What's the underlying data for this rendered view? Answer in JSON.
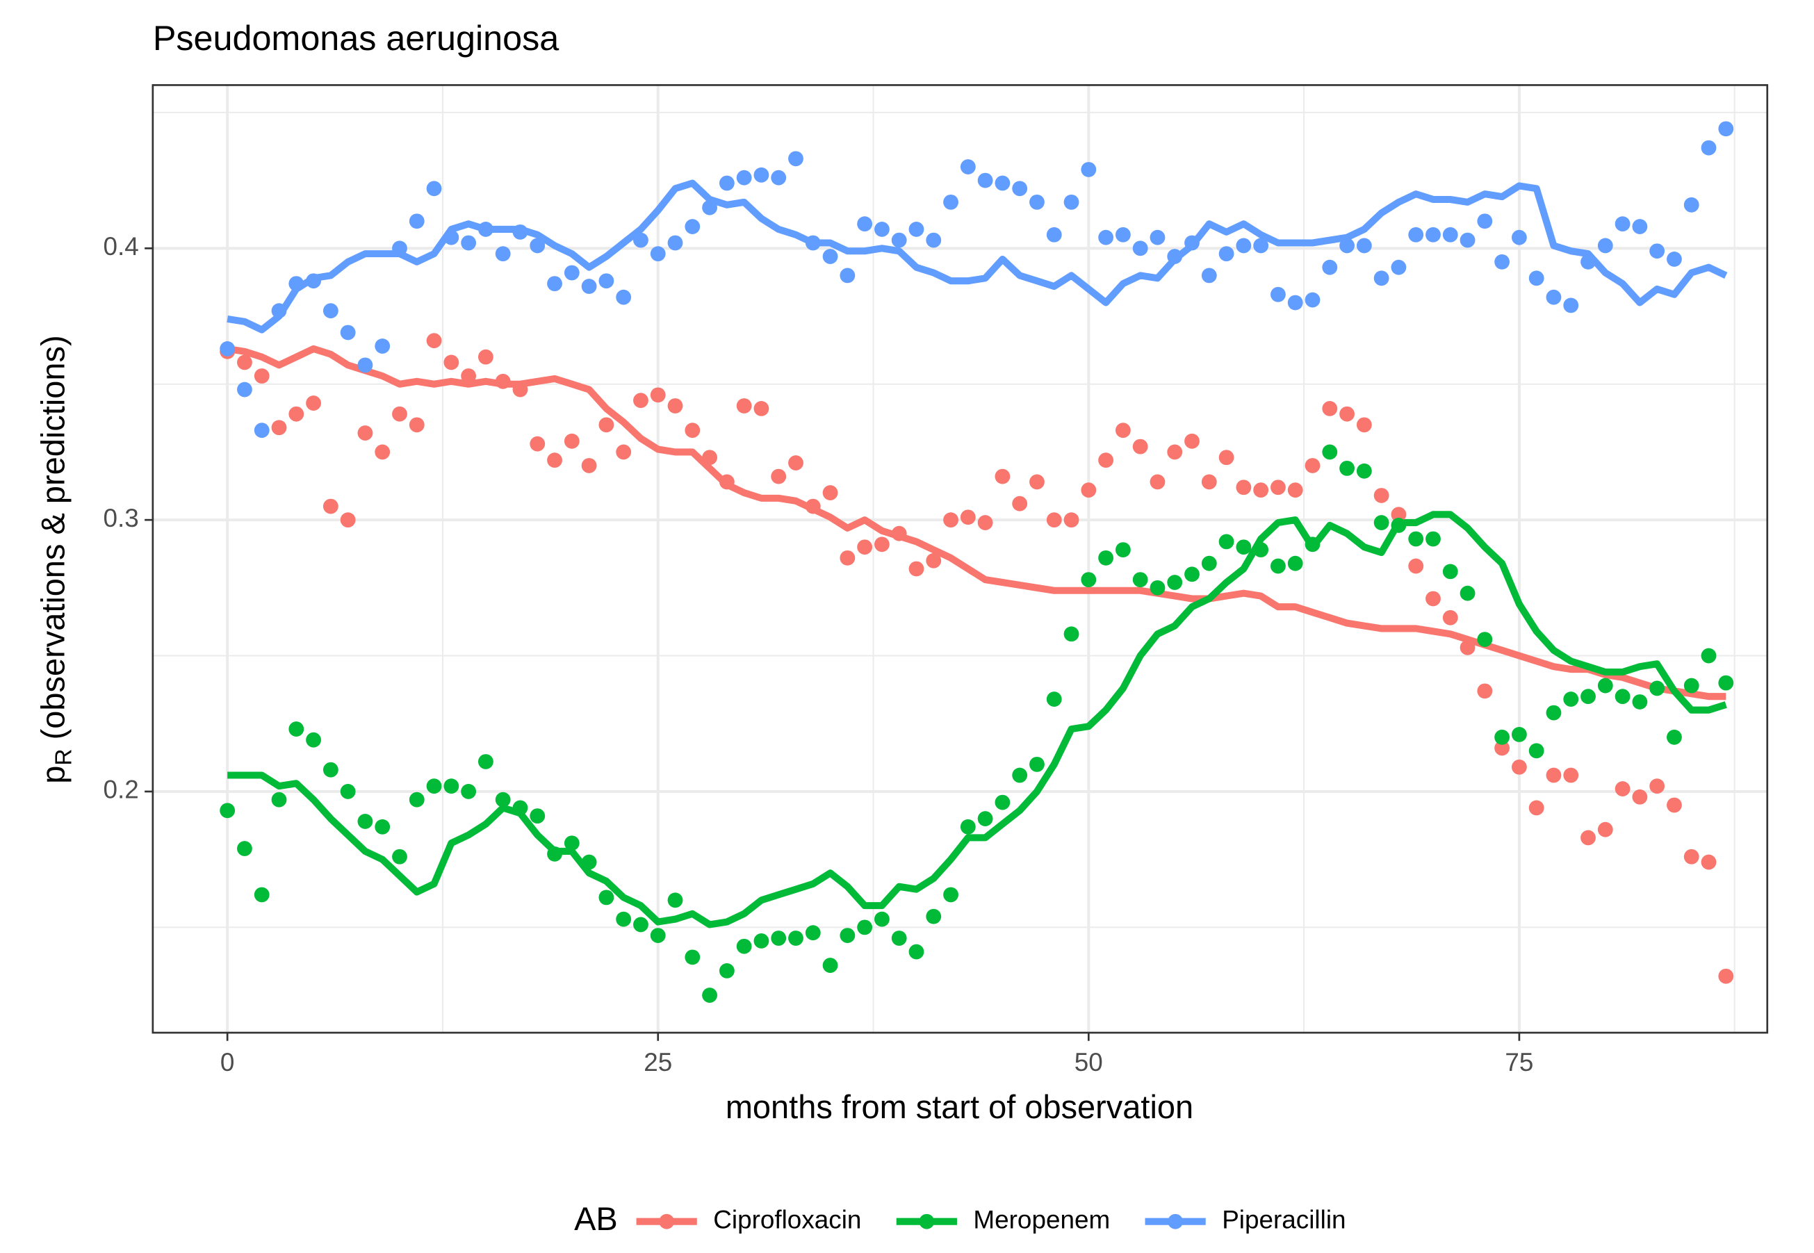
{
  "chart_data": {
    "type": "line",
    "title": "Pseudomonas aeruginosa",
    "x_label": "months from start of observation",
    "y_label": {
      "main": "p",
      "sub": "R",
      "rest": " (observations & predictions)"
    },
    "legend_title": "AB",
    "legend": "bottom",
    "grid": true,
    "xlim": [
      -4.33,
      89.4
    ],
    "ylim": [
      0.1112,
      0.4601
    ],
    "xticks": [
      0,
      25,
      50,
      75
    ],
    "yticks": [
      0.2,
      0.3,
      0.4
    ],
    "xminor": [
      12.5,
      37.5,
      62.5,
      87.5
    ],
    "yminor": [
      0.15,
      0.25,
      0.35,
      0.45
    ],
    "x": [
      0,
      1,
      2,
      3,
      4,
      5,
      6,
      7,
      8,
      9,
      10,
      11,
      12,
      13,
      14,
      15,
      16,
      17,
      18,
      19,
      20,
      21,
      22,
      23,
      24,
      25,
      26,
      27,
      28,
      29,
      30,
      31,
      32,
      33,
      34,
      35,
      36,
      37,
      38,
      39,
      40,
      41,
      42,
      43,
      44,
      45,
      46,
      47,
      48,
      49,
      50,
      51,
      52,
      53,
      54,
      55,
      56,
      57,
      58,
      59,
      60,
      61,
      62,
      63,
      64,
      65,
      66,
      67,
      68,
      69,
      70,
      71,
      72,
      73,
      74,
      75,
      76,
      77,
      78,
      79,
      80,
      81,
      82,
      83,
      84,
      85,
      86,
      87
    ],
    "series": [
      {
        "name": "Ciprofloxacin",
        "color": "#F8766D",
        "values": [
          0.362,
          0.358,
          0.353,
          0.334,
          0.339,
          0.343,
          0.305,
          0.3,
          0.332,
          0.325,
          0.339,
          0.335,
          0.366,
          0.358,
          0.353,
          0.36,
          0.351,
          0.348,
          0.328,
          0.322,
          0.329,
          0.32,
          0.335,
          0.325,
          0.344,
          0.346,
          0.342,
          0.333,
          0.323,
          0.314,
          0.342,
          0.341,
          0.316,
          0.321,
          0.305,
          0.31,
          0.286,
          0.29,
          0.291,
          0.295,
          0.282,
          0.285,
          0.3,
          0.301,
          0.299,
          0.316,
          0.306,
          0.314,
          0.3,
          0.3,
          0.311,
          0.322,
          0.333,
          0.327,
          0.314,
          0.325,
          0.329,
          0.314,
          0.323,
          0.312,
          0.311,
          0.312,
          0.311,
          0.32,
          0.341,
          0.339,
          0.335,
          0.309,
          0.302,
          0.283,
          0.271,
          0.264,
          0.253,
          0.237,
          0.216,
          0.209,
          0.194,
          0.206,
          0.206,
          0.183,
          0.186,
          0.201,
          0.198,
          0.202,
          0.195,
          0.176,
          0.174,
          0.132
        ],
        "fitted": [
          0.363,
          0.362,
          0.36,
          0.357,
          0.36,
          0.363,
          0.361,
          0.357,
          0.355,
          0.353,
          0.35,
          0.351,
          0.35,
          0.351,
          0.35,
          0.351,
          0.35,
          0.35,
          0.351,
          0.352,
          0.35,
          0.348,
          0.341,
          0.336,
          0.33,
          0.326,
          0.325,
          0.325,
          0.319,
          0.313,
          0.31,
          0.308,
          0.308,
          0.307,
          0.304,
          0.301,
          0.297,
          0.3,
          0.296,
          0.294,
          0.292,
          0.289,
          0.286,
          0.282,
          0.278,
          0.277,
          0.276,
          0.275,
          0.274,
          0.274,
          0.274,
          0.274,
          0.274,
          0.274,
          0.273,
          0.272,
          0.271,
          0.271,
          0.272,
          0.273,
          0.272,
          0.268,
          0.268,
          0.266,
          0.264,
          0.262,
          0.261,
          0.26,
          0.26,
          0.26,
          0.259,
          0.258,
          0.256,
          0.254,
          0.252,
          0.25,
          0.248,
          0.246,
          0.245,
          0.245,
          0.243,
          0.242,
          0.24,
          0.238,
          0.237,
          0.236,
          0.235,
          0.235
        ]
      },
      {
        "name": "Meropenem",
        "color": "#00BA38",
        "values": [
          0.193,
          0.179,
          0.162,
          0.197,
          0.223,
          0.219,
          0.208,
          0.2,
          0.189,
          0.187,
          0.176,
          0.197,
          0.202,
          0.202,
          0.2,
          0.211,
          0.197,
          0.194,
          0.191,
          0.177,
          0.181,
          0.174,
          0.161,
          0.153,
          0.151,
          0.147,
          0.16,
          0.139,
          0.125,
          0.134,
          0.143,
          0.145,
          0.146,
          0.146,
          0.148,
          0.136,
          0.147,
          0.15,
          0.153,
          0.146,
          0.141,
          0.154,
          0.162,
          0.187,
          0.19,
          0.196,
          0.206,
          0.21,
          0.234,
          0.258,
          0.278,
          0.286,
          0.289,
          0.278,
          0.275,
          0.277,
          0.28,
          0.284,
          0.292,
          0.29,
          0.289,
          0.283,
          0.284,
          0.291,
          0.325,
          0.319,
          0.318,
          0.299,
          0.298,
          0.293,
          0.293,
          0.281,
          0.273,
          0.256,
          0.22,
          0.221,
          0.215,
          0.229,
          0.234,
          0.235,
          0.239,
          0.235,
          0.233,
          0.238,
          0.22,
          0.239,
          0.25,
          0.24
        ],
        "fitted": [
          0.206,
          0.206,
          0.206,
          0.202,
          0.203,
          0.197,
          0.19,
          0.184,
          0.178,
          0.175,
          0.169,
          0.163,
          0.166,
          0.181,
          0.184,
          0.188,
          0.194,
          0.192,
          0.184,
          0.178,
          0.178,
          0.17,
          0.167,
          0.161,
          0.158,
          0.152,
          0.153,
          0.155,
          0.151,
          0.152,
          0.155,
          0.16,
          0.162,
          0.164,
          0.166,
          0.17,
          0.165,
          0.158,
          0.158,
          0.165,
          0.164,
          0.168,
          0.175,
          0.183,
          0.183,
          0.188,
          0.193,
          0.2,
          0.21,
          0.223,
          0.224,
          0.23,
          0.238,
          0.25,
          0.258,
          0.261,
          0.268,
          0.271,
          0.277,
          0.282,
          0.293,
          0.299,
          0.3,
          0.29,
          0.298,
          0.295,
          0.29,
          0.288,
          0.299,
          0.299,
          0.302,
          0.302,
          0.297,
          0.29,
          0.284,
          0.269,
          0.259,
          0.252,
          0.248,
          0.246,
          0.244,
          0.244,
          0.246,
          0.247,
          0.237,
          0.23,
          0.23,
          0.232
        ]
      },
      {
        "name": "Piperacillin",
        "color": "#619CFF",
        "values": [
          0.363,
          0.348,
          0.333,
          0.377,
          0.387,
          0.388,
          0.377,
          0.369,
          0.357,
          0.364,
          0.4,
          0.41,
          0.422,
          0.404,
          0.402,
          0.407,
          0.398,
          0.406,
          0.401,
          0.387,
          0.391,
          0.386,
          0.388,
          0.382,
          0.403,
          0.398,
          0.402,
          0.408,
          0.415,
          0.424,
          0.426,
          0.427,
          0.426,
          0.433,
          0.402,
          0.397,
          0.39,
          0.409,
          0.407,
          0.403,
          0.407,
          0.403,
          0.417,
          0.43,
          0.425,
          0.424,
          0.422,
          0.417,
          0.405,
          0.417,
          0.429,
          0.404,
          0.405,
          0.4,
          0.404,
          0.397,
          0.402,
          0.39,
          0.398,
          0.401,
          0.401,
          0.383,
          0.38,
          0.381,
          0.393,
          0.401,
          0.401,
          0.389,
          0.393,
          0.405,
          0.405,
          0.405,
          0.403,
          0.41,
          0.395,
          0.404,
          0.389,
          0.382,
          0.379,
          0.395,
          0.401,
          0.409,
          0.408,
          0.399,
          0.396,
          0.416,
          0.437,
          0.444
        ],
        "fitted": [
          0.374,
          0.373,
          0.37,
          0.375,
          0.385,
          0.389,
          0.39,
          0.395,
          0.398,
          0.398,
          0.398,
          0.395,
          0.398,
          0.407,
          0.409,
          0.407,
          0.407,
          0.407,
          0.405,
          0.401,
          0.398,
          0.393,
          0.397,
          0.402,
          0.407,
          0.414,
          0.422,
          0.424,
          0.418,
          0.416,
          0.417,
          0.411,
          0.407,
          0.405,
          0.402,
          0.402,
          0.399,
          0.399,
          0.4,
          0.399,
          0.393,
          0.391,
          0.388,
          0.388,
          0.389,
          0.396,
          0.39,
          0.388,
          0.386,
          0.39,
          0.385,
          0.38,
          0.387,
          0.39,
          0.389,
          0.396,
          0.401,
          0.409,
          0.406,
          0.409,
          0.405,
          0.402,
          0.402,
          0.402,
          0.403,
          0.404,
          0.407,
          0.413,
          0.417,
          0.42,
          0.418,
          0.418,
          0.417,
          0.42,
          0.419,
          0.423,
          0.422,
          0.401,
          0.399,
          0.398,
          0.391,
          0.387,
          0.38,
          0.385,
          0.383,
          0.391,
          0.393,
          0.39
        ]
      }
    ]
  }
}
